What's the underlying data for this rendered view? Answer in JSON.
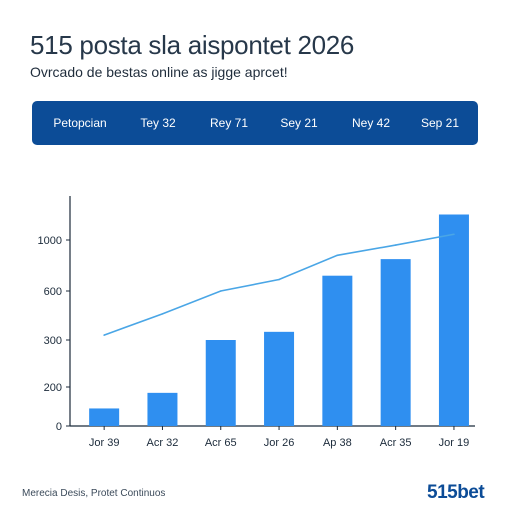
{
  "header": {
    "title": "515 posta sla aispontet 2026",
    "subtitle": "Ovrcado de bestas online as jigge aprcet!"
  },
  "tabs": [
    {
      "label": "Petopcian"
    },
    {
      "label": "Tey 32"
    },
    {
      "label": "Rey 71"
    },
    {
      "label": "Sey 21"
    },
    {
      "label": "Ney 42"
    },
    {
      "label": "Sep 21"
    }
  ],
  "colors": {
    "tabbar": "#0c4c97",
    "bar": "#2f8ff0",
    "line": "#4aa6e6",
    "axis": "#1b2a3a"
  },
  "chart_data": {
    "type": "bar",
    "categories": [
      "Jor 39",
      "Acr 32",
      "Acr 65",
      "Jor 26",
      "Ap 38",
      "Acr 35",
      "Jor 19"
    ],
    "y_ticks": [
      {
        "value": 0,
        "label": "0"
      },
      {
        "value": 200,
        "label": "200"
      },
      {
        "value": 300,
        "label": "300"
      },
      {
        "value": 600,
        "label": "600"
      },
      {
        "value": 1000,
        "label": "1000"
      }
    ],
    "series": [
      {
        "kind": "bar",
        "values": [
          90,
          170,
          300,
          350,
          720,
          850,
          1200
        ]
      },
      {
        "kind": "line",
        "values": [
          330,
          460,
          600,
          690,
          880,
          960,
          1045
        ]
      }
    ],
    "grid": false,
    "legend": "none"
  },
  "footer": {
    "left_text": "Merecia Desis, Protet Continuos",
    "brand": "515bet"
  }
}
